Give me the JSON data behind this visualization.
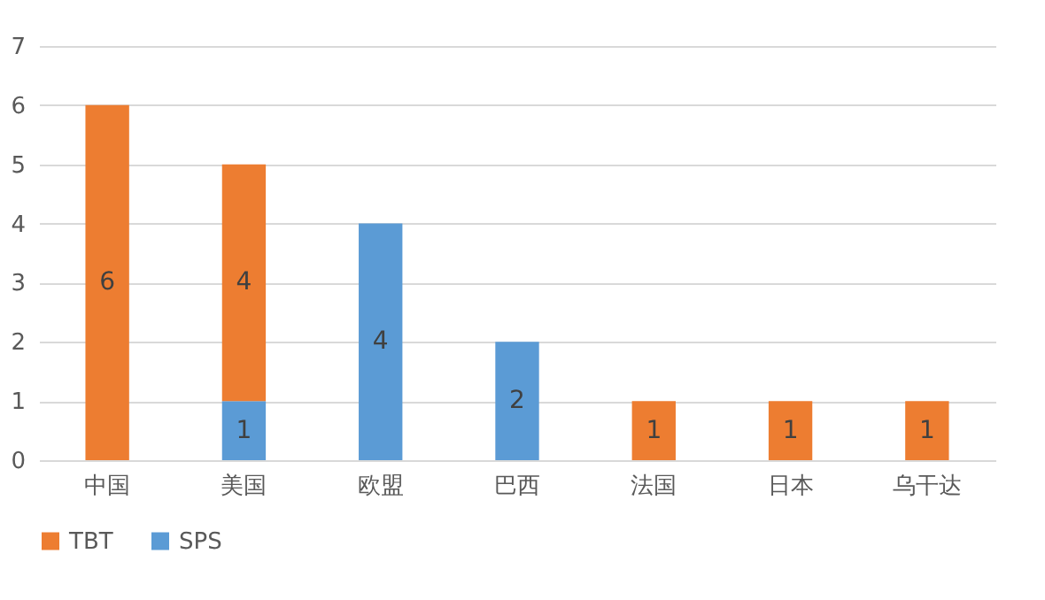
{
  "chart_data": {
    "type": "bar",
    "stacked": true,
    "categories": [
      "中国",
      "美国",
      "欧盟",
      "巴西",
      "法国",
      "日本",
      "乌干达"
    ],
    "series": [
      {
        "name": "SPS",
        "color": "#5b9bd5",
        "values": [
          null,
          1,
          4,
          2,
          null,
          null,
          null
        ]
      },
      {
        "name": "TBT",
        "color": "#ed7d31",
        "values": [
          6,
          4,
          null,
          null,
          1,
          1,
          1
        ]
      }
    ],
    "ylim": [
      0,
      7
    ],
    "yticks": [
      0,
      1,
      2,
      3,
      4,
      5,
      6,
      7
    ],
    "grid": "y",
    "legend": "bottom",
    "data_labels": true
  }
}
